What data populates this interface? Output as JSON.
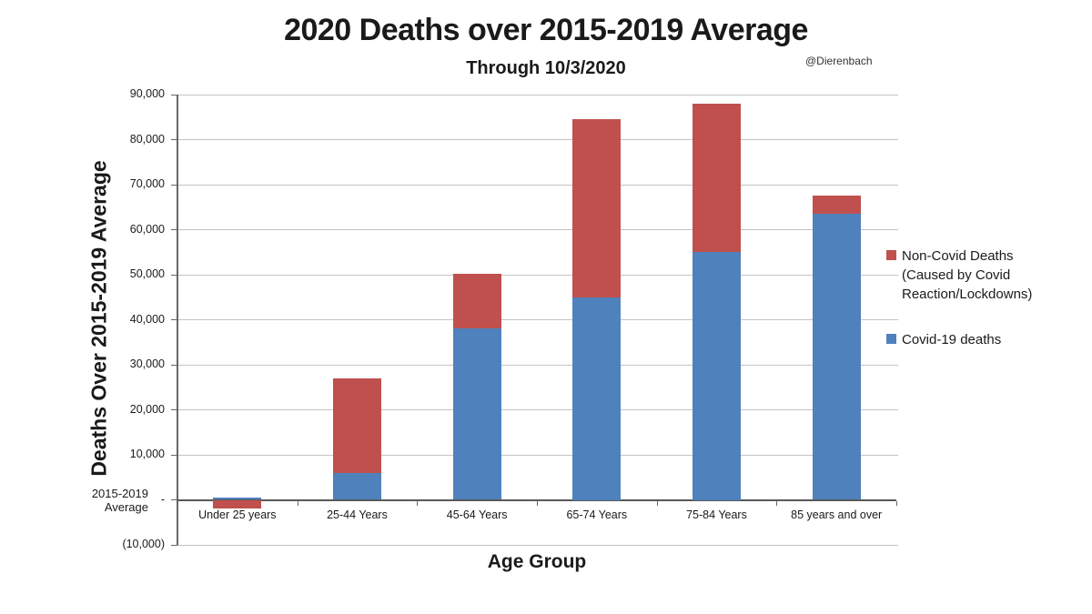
{
  "header": {
    "title": "2020 Deaths over 2015-2019 Average",
    "subtitle": "Through 10/3/2020",
    "attribution": "@Dierenbach"
  },
  "chart_data": {
    "type": "bar",
    "stacked": true,
    "title": "2020 Deaths over 2015-2019 Average",
    "subtitle": "Through 10/3/2020",
    "xlabel": "Age Group",
    "ylabel": "Deaths Over 2015-2019 Average",
    "categories": [
      "Under 25 years",
      "25-44 Years",
      "45-64 Years",
      "65-74 Years",
      "75-84 Years",
      "85 years and over"
    ],
    "series": [
      {
        "name": "Covid-19 deaths",
        "color": "#4F81BD",
        "values": [
          500,
          6000,
          38000,
          45000,
          55000,
          63500
        ]
      },
      {
        "name": "Non-Covid Deaths (Caused by Covid Reaction/Lockdowns)",
        "color": "#C0504D",
        "values": [
          -2000,
          21000,
          12200,
          39500,
          33000,
          4000
        ]
      }
    ],
    "totals": [
      -1500,
      27000,
      50200,
      84500,
      88000,
      67500
    ],
    "ylim": [
      -10000,
      90000
    ],
    "y_tick_interval": 10000,
    "y_tick_labels": [
      "90,000",
      "80,000",
      "70,000",
      "60,000",
      "50,000",
      "40,000",
      "30,000",
      "20,000",
      "10,000",
      "-",
      "(10,000)"
    ],
    "zero_axis_label_lines": [
      "2015-2019",
      "Average"
    ],
    "grid": true,
    "legend_position": "right"
  },
  "legend": {
    "entries": [
      {
        "label": "Non-Covid Deaths (Caused by Covid Reaction/Lockdowns)",
        "color": "#C0504D"
      },
      {
        "label": "Covid-19 deaths",
        "color": "#4F81BD"
      }
    ]
  },
  "colors": {
    "covid_blue": "#4F81BD",
    "noncovid_red": "#C0504D",
    "gridline": "#c3c3c3",
    "axis": "#666666",
    "zero_line": "#595959",
    "background": "#ffffff",
    "text": "#1a1a1a"
  }
}
